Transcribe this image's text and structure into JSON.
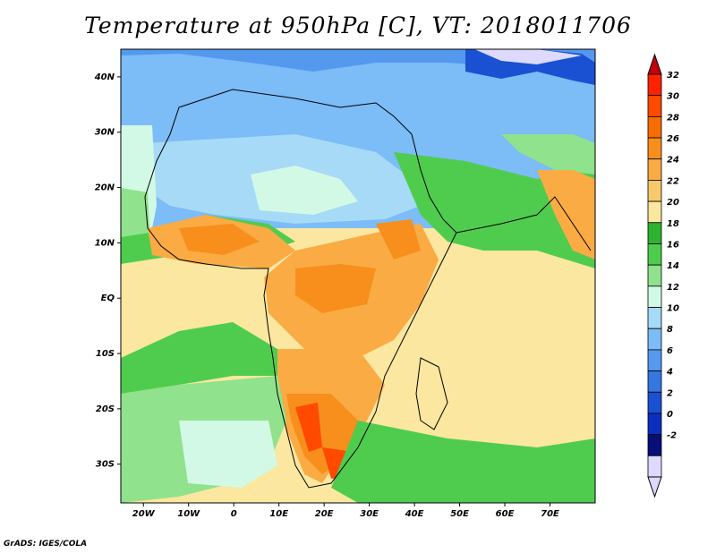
{
  "title": "Temperature at 950hPa [C], VT: 2018011706",
  "footer": "GrADS: IGES/COLA",
  "map": {
    "region": "Africa and western Indian Ocean",
    "projection": "latlon",
    "lon_range": [
      -25,
      80
    ],
    "lat_range": [
      -37,
      45
    ],
    "x_ticks": [
      "20W",
      "10W",
      "0",
      "10E",
      "20E",
      "30E",
      "40E",
      "50E",
      "60E",
      "70E"
    ],
    "y_ticks": [
      "40N",
      "30N",
      "20N",
      "10N",
      "EQ",
      "10S",
      "20S",
      "30S"
    ]
  },
  "colorbar": {
    "labels": [
      "32",
      "30",
      "28",
      "26",
      "24",
      "22",
      "20",
      "18",
      "16",
      "14",
      "12",
      "10",
      "8",
      "6",
      "4",
      "2",
      "0",
      "-2"
    ],
    "colors": [
      "#ff2200",
      "#ff4a00",
      "#f76d00",
      "#f88f1c",
      "#faab44",
      "#f8c96a",
      "#fbe7a0",
      "#2eb330",
      "#4fcc4e",
      "#90e28c",
      "#d2f9e5",
      "#a6daf6",
      "#7cbcf7",
      "#5499ee",
      "#3576e1",
      "#1a50d2",
      "#0c2ec0",
      "#060e78",
      "#ddd9ff"
    ],
    "over_color": "#c2000c",
    "under_color": "#ddd9ff"
  }
}
